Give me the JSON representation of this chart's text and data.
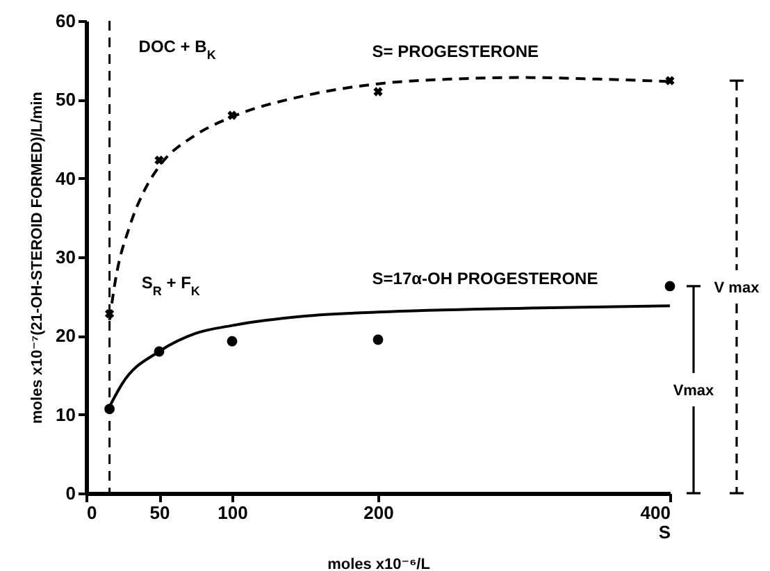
{
  "chart_data": {
    "type": "scatter",
    "xlabel": "moles x10⁻⁶/L",
    "ylabel": "moles x10⁻⁷(21-OH-STEROID FORMED)/L/min",
    "xlim": [
      0,
      400
    ],
    "ylim": [
      0,
      60
    ],
    "xticks": [
      0,
      50,
      100,
      200,
      {
        "value": 400,
        "label": "400\nS"
      }
    ],
    "yticks": [
      0,
      10,
      20,
      30,
      40,
      50,
      60
    ],
    "grid": false,
    "series": [
      {
        "type": "scatter",
        "marker": "cross",
        "color": "#000000",
        "x": [
          16,
          50,
          100,
          200,
          400
        ],
        "values": [
          22.8,
          42.3,
          48,
          51,
          52.4
        ]
      },
      {
        "type": "line",
        "line_style": "dashed",
        "color": "#000000",
        "x": [
          16,
          20,
          30,
          40,
          50,
          75,
          100,
          150,
          200,
          250,
          300,
          350,
          400
        ],
        "values": [
          22,
          27,
          34,
          38.5,
          41.5,
          45.5,
          47.8,
          50.5,
          52,
          52.6,
          52.8,
          52.6,
          52.3
        ]
      },
      {
        "type": "scatter",
        "marker": "circle",
        "color": "#000000",
        "x": [
          16,
          50,
          100,
          200,
          400
        ],
        "values": [
          10.7,
          18,
          19.3,
          19.5,
          26.3
        ]
      },
      {
        "type": "line",
        "line_style": "solid",
        "color": "#000000",
        "x": [
          16,
          25,
          50,
          75,
          100,
          150,
          200,
          300,
          400
        ],
        "values": [
          11,
          14,
          18,
          20.3,
          21.3,
          22.5,
          23,
          23.5,
          23.8
        ]
      }
    ],
    "ref_lines": [
      {
        "axis": "x",
        "value": 16,
        "line_style": "dashed",
        "color": "#000000"
      }
    ],
    "annotations": [
      "DOC + B$_{K}$",
      "S= PROGESTERONE",
      "S$_{R}$ + F$_{K}$",
      "S=17α-OH PROGESTERONE",
      "V max",
      "Vmax"
    ]
  }
}
